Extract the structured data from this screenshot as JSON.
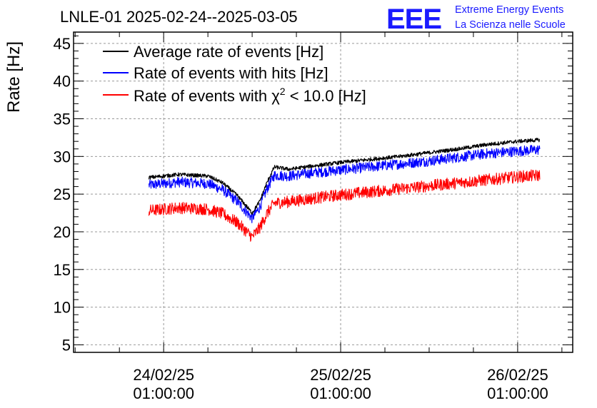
{
  "chart_data": {
    "type": "line",
    "title": "LNLE-01 2025-02-24--2025-03-05",
    "ylabel": "Rate [Hz]",
    "xlabel": "",
    "ylim": [
      4,
      46.5
    ],
    "yticks": [
      5,
      10,
      15,
      20,
      25,
      30,
      35,
      40,
      45
    ],
    "xlim": [
      "2025-02-23 12:47",
      "2025-02-26 08:28"
    ],
    "xticks": [
      {
        "x": "2025-02-24 01:00:00",
        "line1": "24/02/25",
        "line2": "01:00:00"
      },
      {
        "x": "2025-02-25 01:00:00",
        "line1": "25/02/25",
        "line2": "01:00:00"
      },
      {
        "x": "2025-02-26 01:00:00",
        "line1": "26/02/25",
        "line2": "01:00:00"
      }
    ],
    "grid": true,
    "legend_position": "top-left",
    "series": [
      {
        "name": "Average rate of events [Hz]",
        "color": "#000000",
        "noise": 0.25,
        "x": [
          "2025-02-23 23:00",
          "2025-02-24 03:00",
          "2025-02-24 07:00",
          "2025-02-24 09:00",
          "2025-02-24 11:00",
          "2025-02-24 13:00",
          "2025-02-24 14:00",
          "2025-02-24 15:00",
          "2025-02-24 16:00",
          "2025-02-24 18:00",
          "2025-02-24 21:00",
          "2025-02-25 01:00",
          "2025-02-25 05:00",
          "2025-02-25 09:00",
          "2025-02-25 13:00",
          "2025-02-25 17:00",
          "2025-02-25 21:00",
          "2025-02-26 01:00",
          "2025-02-26 04:00"
        ],
        "y": [
          27.2,
          27.6,
          27.4,
          26.5,
          24.8,
          22.5,
          24.0,
          26.5,
          28.6,
          28.3,
          28.7,
          29.2,
          29.6,
          30.0,
          30.5,
          31.0,
          31.6,
          32.0,
          32.2
        ]
      },
      {
        "name": "Rate of events with hits [Hz]",
        "color": "#0000ff",
        "noise": 0.7,
        "x": [
          "2025-02-23 23:00",
          "2025-02-24 03:00",
          "2025-02-24 07:00",
          "2025-02-24 09:00",
          "2025-02-24 11:00",
          "2025-02-24 13:00",
          "2025-02-24 14:00",
          "2025-02-24 15:00",
          "2025-02-24 16:00",
          "2025-02-24 18:00",
          "2025-02-24 21:00",
          "2025-02-25 01:00",
          "2025-02-25 05:00",
          "2025-02-25 09:00",
          "2025-02-25 13:00",
          "2025-02-25 17:00",
          "2025-02-25 21:00",
          "2025-02-26 01:00",
          "2025-02-26 04:00"
        ],
        "y": [
          26.2,
          26.6,
          26.4,
          25.6,
          24.0,
          21.8,
          23.2,
          25.7,
          27.5,
          27.4,
          27.8,
          28.2,
          28.6,
          29.0,
          29.4,
          29.9,
          30.4,
          30.7,
          30.9
        ]
      },
      {
        "name": "Rate of events with χ² < 10.0 [Hz]",
        "color": "#ff0000",
        "noise": 0.8,
        "x": [
          "2025-02-23 23:00",
          "2025-02-24 03:00",
          "2025-02-24 07:00",
          "2025-02-24 09:00",
          "2025-02-24 11:00",
          "2025-02-24 13:00",
          "2025-02-24 14:00",
          "2025-02-24 15:00",
          "2025-02-24 16:00",
          "2025-02-24 18:00",
          "2025-02-24 21:00",
          "2025-02-25 01:00",
          "2025-02-25 05:00",
          "2025-02-25 09:00",
          "2025-02-25 13:00",
          "2025-02-25 17:00",
          "2025-02-25 21:00",
          "2025-02-26 01:00",
          "2025-02-26 04:00"
        ],
        "y": [
          22.8,
          23.2,
          23.0,
          22.4,
          21.2,
          19.3,
          20.5,
          22.4,
          23.8,
          24.0,
          24.4,
          24.9,
          25.3,
          25.7,
          26.1,
          26.5,
          26.9,
          27.3,
          27.5
        ]
      }
    ]
  },
  "legend": [
    {
      "label": "Average rate of events [Hz]",
      "color": "#000000"
    },
    {
      "label": "Rate of events with hits [Hz]",
      "color": "#0000ff"
    },
    {
      "label_prefix": "Rate of events with ",
      "chi": "χ",
      "sup": "2",
      "label_suffix": " < 10.0 [Hz]",
      "color": "#ff0000"
    }
  ],
  "logo": {
    "text": "EEE",
    "line1": "Extreme Energy Events",
    "line2": "La Scienza nelle Scuole",
    "color": "#1a1aff"
  }
}
